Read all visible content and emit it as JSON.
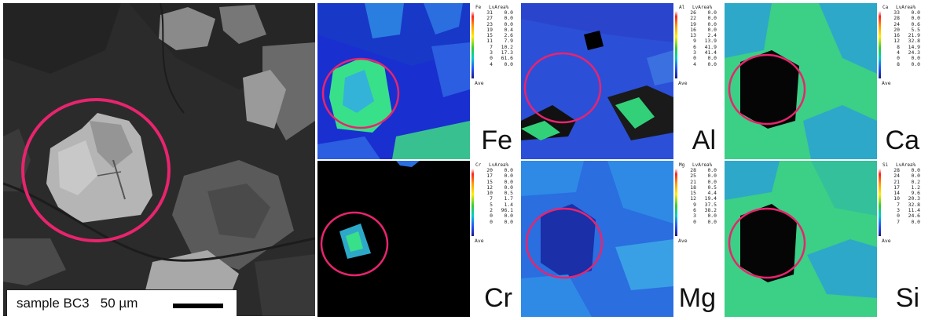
{
  "scale_label": "sample BC3   50 µm",
  "legend_header": "LvArea%",
  "ave_label": "Ave",
  "maps": [
    {
      "element": "Fe",
      "levels": [
        "31",
        "27",
        "23",
        "19",
        "15",
        "11",
        "7",
        "3",
        "0",
        "4"
      ],
      "areas": [
        "0.0",
        "0.0",
        "0.0",
        "0.4",
        "2.6",
        "7.9",
        "10.2",
        "17.3",
        "61.6",
        "0.0"
      ]
    },
    {
      "element": "Al",
      "levels": [
        "26",
        "22",
        "19",
        "16",
        "13",
        "9",
        "6",
        "3",
        "0",
        "4"
      ],
      "areas": [
        "0.0",
        "0.0",
        "0.0",
        "0.0",
        "2.4",
        "13.9",
        "41.9",
        "41.4",
        "0.0",
        "0.0"
      ]
    },
    {
      "element": "Ca",
      "levels": [
        "33",
        "28",
        "24",
        "20",
        "16",
        "12",
        "8",
        "4",
        "0",
        "8"
      ],
      "areas": [
        "0.0",
        "0.0",
        "0.6",
        "5.5",
        "21.9",
        "32.8",
        "14.9",
        "24.3",
        "0.0",
        "0.0"
      ]
    },
    {
      "element": "Cr",
      "levels": [
        "20",
        "17",
        "15",
        "12",
        "10",
        "7",
        "5",
        "2",
        "0",
        "0"
      ],
      "areas": [
        "0.0",
        "0.0",
        "0.0",
        "0.0",
        "0.5",
        "1.7",
        "1.4",
        "96.1",
        "0.0",
        "0.0"
      ]
    },
    {
      "element": "Mg",
      "levels": [
        "28",
        "25",
        "21",
        "18",
        "15",
        "12",
        "9",
        "6",
        "3",
        "0"
      ],
      "areas": [
        "0.0",
        "0.0",
        "0.0",
        "0.5",
        "4.4",
        "19.4",
        "37.5",
        "38.2",
        "0.0",
        "0.0"
      ]
    },
    {
      "element": "Si",
      "levels": [
        "28",
        "24",
        "21",
        "17",
        "14",
        "10",
        "7",
        "3",
        "0",
        "7"
      ],
      "areas": [
        "0.0",
        "0.0",
        "0.2",
        "1.2",
        "9.6",
        "20.3",
        "32.8",
        "11.4",
        "24.6",
        "0.0"
      ]
    }
  ],
  "colors": {
    "circle": "#e8246e",
    "bg_map": "#1a2fd0",
    "high": "#39e08a"
  }
}
